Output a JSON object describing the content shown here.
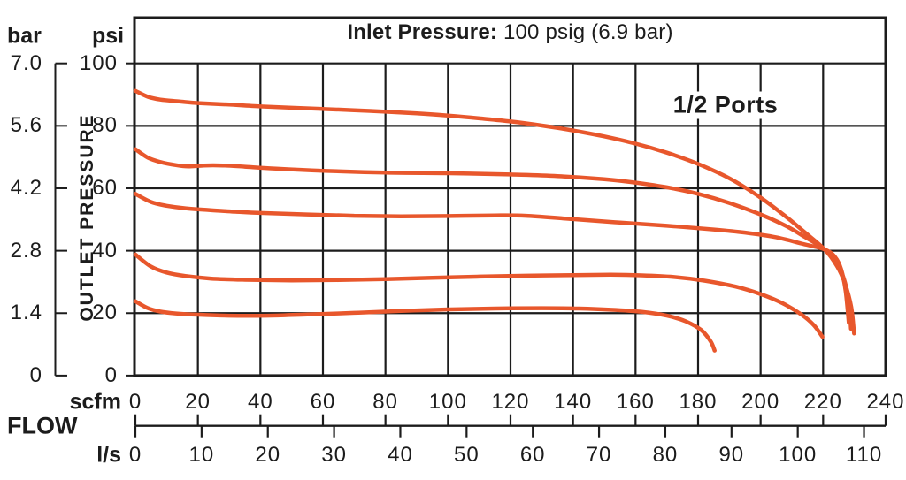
{
  "chart_data": {
    "type": "line",
    "title": {
      "label": "Inlet Pressure:",
      "value": "100 psig (6.9 bar)"
    },
    "annotation": "1/2 Ports",
    "y_axis": {
      "label": "OUTLET PRESSURE",
      "units": [
        "bar",
        "psi"
      ],
      "bar_ticks": [
        "7.0",
        "5.6",
        "4.2",
        "2.8",
        "1.4",
        "0"
      ],
      "psi_ticks": [
        "100",
        "80",
        "60",
        "40",
        "20",
        "0"
      ],
      "psi_range": [
        0,
        100
      ],
      "grid_step_psi": 20
    },
    "x_axis": {
      "label": "FLOW",
      "units": [
        "scfm",
        "l/s"
      ],
      "scfm_ticks": [
        0,
        20,
        40,
        60,
        80,
        100,
        120,
        140,
        160,
        180,
        200,
        220,
        240
      ],
      "ls_ticks": [
        0,
        10,
        20,
        30,
        40,
        50,
        60,
        70,
        80,
        90,
        100,
        110
      ],
      "scfm_range": [
        0,
        240
      ],
      "scfm_per_ls": 2.1189,
      "grid_step_scfm": 20
    },
    "grid": true,
    "legend": "none",
    "series": [
      {
        "name": "curve-1",
        "points": [
          [
            0,
            91.2
          ],
          [
            4,
            89.3
          ],
          [
            8,
            88.4
          ],
          [
            14,
            87.8
          ],
          [
            20,
            87.3
          ],
          [
            30,
            86.8
          ],
          [
            40,
            86.2
          ],
          [
            50,
            85.8
          ],
          [
            60,
            85.4
          ],
          [
            70,
            85.0
          ],
          [
            80,
            84.5
          ],
          [
            90,
            84.0
          ],
          [
            100,
            83.3
          ],
          [
            110,
            82.4
          ],
          [
            120,
            81.4
          ],
          [
            130,
            80.1
          ],
          [
            140,
            78.5
          ],
          [
            150,
            76.6
          ],
          [
            160,
            74.3
          ],
          [
            170,
            71.4
          ],
          [
            180,
            67.8
          ],
          [
            190,
            63.2
          ],
          [
            200,
            57.0
          ],
          [
            208,
            51.0
          ],
          [
            214,
            46.0
          ],
          [
            220.5,
            40.4
          ],
          [
            224.5,
            35.0
          ],
          [
            227,
            29.5
          ],
          [
            229,
            22.0
          ],
          [
            229.9,
            13.5
          ]
        ]
      },
      {
        "name": "curve-2",
        "points": [
          [
            0,
            72.5
          ],
          [
            4,
            69.8
          ],
          [
            8,
            68.4
          ],
          [
            13,
            67.4
          ],
          [
            17,
            67.0
          ],
          [
            22,
            67.3
          ],
          [
            28,
            67.3
          ],
          [
            35,
            66.9
          ],
          [
            45,
            66.3
          ],
          [
            60,
            65.6
          ],
          [
            80,
            65.0
          ],
          [
            100,
            64.8
          ],
          [
            120,
            64.4
          ],
          [
            135,
            63.9
          ],
          [
            150,
            62.9
          ],
          [
            160,
            61.8
          ],
          [
            170,
            60.3
          ],
          [
            180,
            58.2
          ],
          [
            190,
            55.3
          ],
          [
            200,
            51.6
          ],
          [
            208,
            48.0
          ],
          [
            214,
            44.5
          ],
          [
            220.5,
            40.4
          ],
          [
            224,
            36.5
          ],
          [
            226.5,
            31.5
          ],
          [
            228.2,
            24.0
          ],
          [
            228.9,
            15.0
          ]
        ]
      },
      {
        "name": "curve-3",
        "points": [
          [
            0,
            58.2
          ],
          [
            5,
            55.6
          ],
          [
            10,
            54.4
          ],
          [
            16,
            53.6
          ],
          [
            24,
            53.0
          ],
          [
            32,
            52.5
          ],
          [
            40,
            52.1
          ],
          [
            55,
            51.6
          ],
          [
            70,
            51.2
          ],
          [
            85,
            51.0
          ],
          [
            100,
            51.1
          ],
          [
            115,
            51.3
          ],
          [
            125,
            51.2
          ],
          [
            140,
            50.1
          ],
          [
            155,
            49.0
          ],
          [
            170,
            48.0
          ],
          [
            185,
            46.8
          ],
          [
            195,
            45.8
          ],
          [
            205,
            44.3
          ],
          [
            213,
            42.3
          ],
          [
            220.5,
            40.4
          ],
          [
            223.8,
            38.0
          ],
          [
            225.8,
            34.0
          ],
          [
            227.2,
            27.0
          ],
          [
            228.2,
            17.0
          ]
        ]
      },
      {
        "name": "curve-4",
        "points": [
          [
            0,
            38.8
          ],
          [
            5,
            34.9
          ],
          [
            10,
            33.0
          ],
          [
            16,
            31.9
          ],
          [
            24,
            31.1
          ],
          [
            35,
            30.7
          ],
          [
            50,
            30.5
          ],
          [
            65,
            30.6
          ],
          [
            80,
            30.9
          ],
          [
            95,
            31.3
          ],
          [
            110,
            31.7
          ],
          [
            125,
            32.0
          ],
          [
            140,
            32.2
          ],
          [
            152,
            32.3
          ],
          [
            162,
            32.1
          ],
          [
            172,
            31.6
          ],
          [
            182,
            30.4
          ],
          [
            192,
            28.5
          ],
          [
            200,
            26.1
          ],
          [
            207,
            23.2
          ],
          [
            213,
            19.6
          ],
          [
            217,
            16.2
          ],
          [
            219.8,
            12.4
          ]
        ]
      },
      {
        "name": "curve-5",
        "points": [
          [
            0,
            23.8
          ],
          [
            4,
            21.6
          ],
          [
            8,
            20.5
          ],
          [
            13,
            19.9
          ],
          [
            20,
            19.5
          ],
          [
            30,
            19.2
          ],
          [
            42,
            19.2
          ],
          [
            55,
            19.6
          ],
          [
            70,
            20.1
          ],
          [
            85,
            20.7
          ],
          [
            100,
            21.2
          ],
          [
            115,
            21.5
          ],
          [
            130,
            21.6
          ],
          [
            142,
            21.5
          ],
          [
            152,
            21.1
          ],
          [
            162,
            20.4
          ],
          [
            170,
            19.2
          ],
          [
            176,
            17.4
          ],
          [
            181,
            14.6
          ],
          [
            184,
            11.0
          ],
          [
            185.3,
            8.0
          ]
        ]
      }
    ],
    "colors": {
      "curve": "#E8572C",
      "grid": "#1C1C1C",
      "text": "#1C1C1C",
      "background": "#FFFFFF"
    }
  }
}
